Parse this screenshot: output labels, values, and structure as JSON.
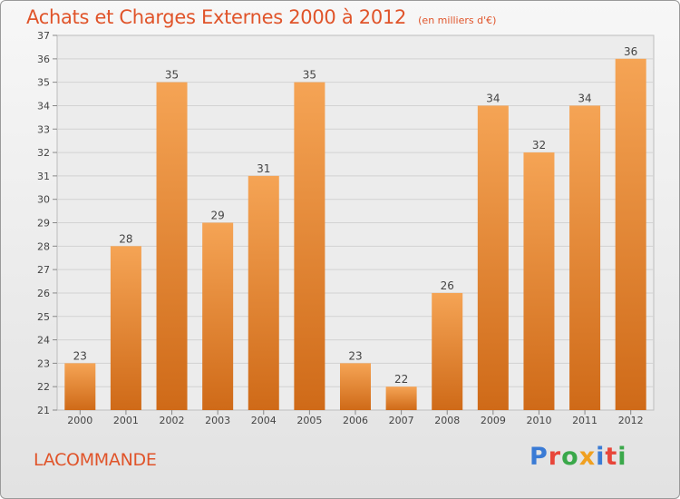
{
  "header": {
    "title": "Achats et Charges Externes 2000 à 2012",
    "subtitle": "(en milliers d'€)"
  },
  "footer": {
    "commune": "LACOMMANDE",
    "logo_text": "Proxiti",
    "logo_colors": [
      "#3a7bd5",
      "#e8463a",
      "#3aa84a",
      "#f0a020",
      "#3a7bd5",
      "#e8463a",
      "#3aa84a"
    ]
  },
  "chart_data": {
    "type": "bar",
    "categories": [
      "2000",
      "2001",
      "2002",
      "2003",
      "2004",
      "2005",
      "2006",
      "2007",
      "2008",
      "2009",
      "2010",
      "2011",
      "2012"
    ],
    "values": [
      23,
      28,
      35,
      29,
      31,
      35,
      23,
      22,
      26,
      34,
      32,
      34,
      36
    ],
    "ylim": [
      21,
      37
    ],
    "yticks": [
      21,
      22,
      23,
      24,
      25,
      26,
      27,
      28,
      29,
      30,
      31,
      32,
      33,
      34,
      35,
      36,
      37
    ],
    "grid": true,
    "bar_color_top": "#f5a455",
    "bar_color_bottom": "#cf6a18",
    "data_labels": true
  }
}
